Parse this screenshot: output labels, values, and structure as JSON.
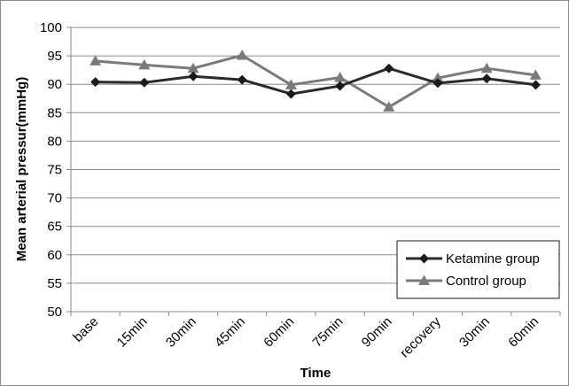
{
  "chart_data": {
    "type": "line",
    "title": "",
    "xlabel": "Time",
    "ylabel": "Mean arterial pressur(mmHg)",
    "categories": [
      "base",
      "15min",
      "30min",
      "45min",
      "60min",
      "75min",
      "90min",
      "recovery",
      "30min",
      "60min"
    ],
    "ylim": [
      50,
      100
    ],
    "yticks": [
      50,
      55,
      60,
      65,
      70,
      75,
      80,
      85,
      90,
      95,
      100
    ],
    "grid": true,
    "legend_position": "bottom-right",
    "series": [
      {
        "name": "Ketamine group",
        "marker": "diamond",
        "color": "#2b2b2b",
        "values": [
          90.4,
          90.3,
          91.4,
          90.8,
          88.3,
          89.7,
          92.8,
          90.2,
          91.0,
          89.9
        ]
      },
      {
        "name": "Control group",
        "marker": "triangle",
        "color": "#7a7a7a",
        "values": [
          94.1,
          93.4,
          92.8,
          95.1,
          89.9,
          91.2,
          86.0,
          91.1,
          92.8,
          91.6
        ]
      }
    ]
  }
}
